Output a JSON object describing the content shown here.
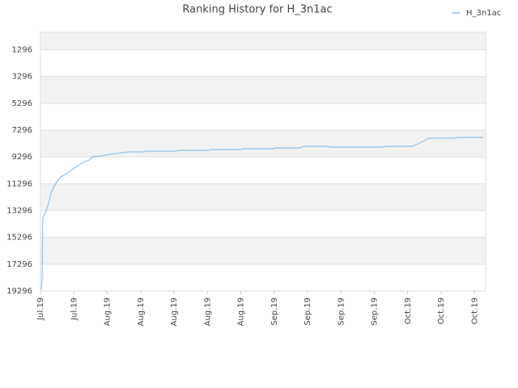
{
  "chart_data": {
    "type": "line",
    "title": "Ranking History for H_3n1ac",
    "series": [
      {
        "name": "H_3n1ac",
        "color": "#8fc3f0",
        "x": [
          0.2,
          0.4,
          0.5,
          1.3,
          1.8,
          2.4,
          3.3,
          4.5,
          6.4,
          7.8,
          9.6,
          10.9,
          11.8,
          13.6,
          15.5,
          18.2,
          19.6,
          23.3,
          23.6,
          30.5,
          30.9,
          37.8,
          38.2,
          45.1,
          45.5,
          52.4,
          52.7,
          58.2,
          59.1,
          64.5,
          65.1,
          76.9,
          77.5,
          83.6,
          87.3,
          93.1,
          93.8,
          99.5
        ],
        "values": [
          19175,
          18090,
          13869,
          13266,
          12784,
          11940,
          11336,
          10794,
          10432,
          10070,
          9708,
          9527,
          9286,
          9226,
          9105,
          8985,
          8924,
          8924,
          8864,
          8864,
          8804,
          8804,
          8743,
          8743,
          8683,
          8683,
          8623,
          8623,
          8502,
          8502,
          8563,
          8563,
          8502,
          8502,
          7899,
          7899,
          7839,
          7839
        ]
      }
    ],
    "xlim": [
      0,
      100
    ],
    "xticks": [
      {
        "value": 0,
        "label": "Jul.19"
      },
      {
        "value": 7.5,
        "label": "Jul.19"
      },
      {
        "value": 15,
        "label": "Aug.19"
      },
      {
        "value": 22.5,
        "label": "Aug.19"
      },
      {
        "value": 30,
        "label": "Aug.19"
      },
      {
        "value": 37.5,
        "label": "Aug.19"
      },
      {
        "value": 45,
        "label": "Aug.19"
      },
      {
        "value": 52.5,
        "label": "Sep.19"
      },
      {
        "value": 60,
        "label": "Sep.19"
      },
      {
        "value": 67.5,
        "label": "Sep.19"
      },
      {
        "value": 75,
        "label": "Sep.19"
      },
      {
        "value": 82.5,
        "label": "Oct.19"
      },
      {
        "value": 90,
        "label": "Oct.19"
      },
      {
        "value": 97.5,
        "label": "Oct.19"
      }
    ],
    "ylim": [
      19296,
      0
    ],
    "yticks": [
      1296,
      3296,
      5296,
      7296,
      9296,
      11296,
      13296,
      15296,
      17296,
      19296
    ],
    "grid": true,
    "legend": "top-right"
  }
}
